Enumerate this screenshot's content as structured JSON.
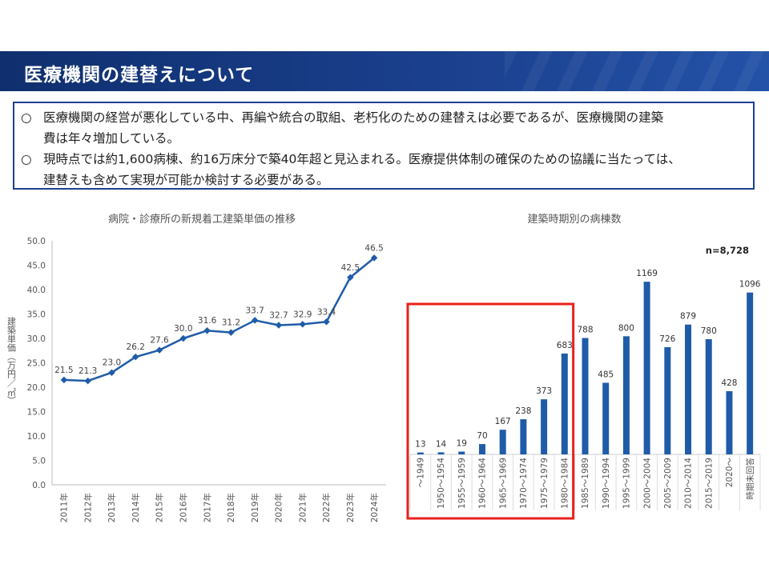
{
  "header": {
    "title": "医療機関の建替えについて"
  },
  "summary": {
    "bullet_mark": "○",
    "items": [
      {
        "line1": "医療機関の経営が悪化している中、再編や統合の取組、老朽化のための建替えは必要であるが、医療機関の建築",
        "line2": "費は年々増加している。"
      },
      {
        "line1": "現時点では約1,600病棟、約16万床分で築40年超と見込まれる。医療提供体制の確保のための協議に当たっては、",
        "line2": "建替えも含めて実現が可能か検討する必要がある。"
      }
    ]
  },
  "chart_data": [
    {
      "type": "line",
      "title": "病院・診療所の新規着工建築単価の推移",
      "ylabel": "建築単価（万円／㎡）",
      "xlabel": "",
      "ylim": [
        0,
        50
      ],
      "yticks": [
        "0.0",
        "5.0",
        "10.0",
        "15.0",
        "20.0",
        "25.0",
        "30.0",
        "35.0",
        "40.0",
        "45.0",
        "50.0"
      ],
      "categories": [
        "2011年",
        "2012年",
        "2013年",
        "2014年",
        "2015年",
        "2016年",
        "2017年",
        "2018年",
        "2019年",
        "2020年",
        "2021年",
        "2022年",
        "2023年",
        "2024年"
      ],
      "values": [
        21.5,
        21.3,
        23.0,
        26.2,
        27.6,
        30.0,
        31.6,
        31.2,
        33.7,
        32.7,
        32.9,
        33.4,
        42.5,
        46.5
      ],
      "value_labels": [
        "21.5",
        "21.3",
        "23.0",
        "26.2",
        "27.6",
        "30.0",
        "31.6",
        "31.2",
        "33.7",
        "32.7",
        "32.9",
        "33.4",
        "42.5",
        "46.5"
      ],
      "color": "#1f5ca8",
      "grid": false
    },
    {
      "type": "bar",
      "title": "建築時期別の病棟数",
      "annotation": "n=8,728",
      "categories": [
        "～1949",
        "1950～1954",
        "1955～1959",
        "1960～1964",
        "1965～1969",
        "1970～1974",
        "1975～1979",
        "1980～1984",
        "1985～1989",
        "1990～1994",
        "1995～1999",
        "2000～2004",
        "2005～2009",
        "2010～2014",
        "2015～2019",
        "2020～",
        "時期未回答"
      ],
      "values": [
        13,
        14,
        19,
        70,
        167,
        238,
        373,
        683,
        788,
        485,
        800,
        1169,
        726,
        879,
        780,
        428,
        1096
      ],
      "value_labels": [
        "13",
        "14",
        "19",
        "70",
        "167",
        "238",
        "373",
        "683",
        "788",
        "485",
        "800",
        "1169",
        "726",
        "879",
        "780",
        "428",
        "1096"
      ],
      "color": "#1f5ca8",
      "highlight": {
        "categories": [
          "～1949",
          "1950～1954",
          "1955～1959",
          "1960～1964",
          "1965～1969",
          "1970～1974",
          "1975～1979",
          "1980～1984"
        ],
        "color": "#e8201c"
      },
      "ylim": [
        0,
        1300
      ],
      "grid": false
    }
  ]
}
